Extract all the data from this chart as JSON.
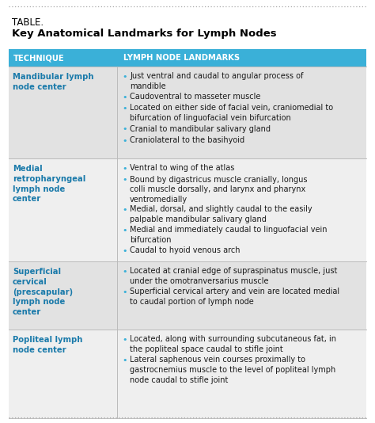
{
  "title_line1": "TABLE.",
  "title_line2": "Key Anatomical Landmarks for Lymph Nodes",
  "header": [
    "TECHNIQUE",
    "LYMPH NODE LANDMARKS"
  ],
  "header_bg": "#3ab0d8",
  "header_text_color": "#ffffff",
  "row_bg_even": "#e2e2e2",
  "row_bg_odd": "#efefef",
  "technique_color": "#1a7aaa",
  "bullet_color": "#3ab0d8",
  "border_color": "#aaaaaa",
  "rows": [
    {
      "technique": "Mandibular lymph\nnode center",
      "landmarks": [
        "Just ventral and caudal to angular process of\nmandible",
        "Caudoventral to masseter muscle",
        "Located on either side of facial vein, craniomedial to\nbifurcation of linguofacial vein bifurcation",
        "Cranial to mandibular salivary gland",
        "Craniolateral to the basihyoid"
      ]
    },
    {
      "technique": "Medial\nretropharyngeal\nlymph node\ncenter",
      "landmarks": [
        "Ventral to wing of the atlas",
        "Bound by digastricus muscle cranially, longus\ncolli muscle dorsally, and larynx and pharynx\nventromedially",
        "Medial, dorsal, and slightly caudal to the easily\npalpable mandibular salivary gland",
        "Medial and immediately caudal to linguofacial vein\nbifurcation",
        "Caudal to hyoid venous arch"
      ]
    },
    {
      "technique": "Superficial\ncervical\n(prescapular)\nlymph node\ncenter",
      "landmarks": [
        "Located at cranial edge of supraspinatus muscle, just\nunder the omotranversarius muscle",
        "Superficial cervical artery and vein are located medial\nto caudal portion of lymph node"
      ]
    },
    {
      "technique": "Popliteal lymph\nnode center",
      "landmarks": [
        "Located, along with surrounding subcutaneous fat, in\nthe popliteal space caudal to stifle joint",
        "Lateral saphenous vein courses proximally to\ngastrocnemius muscle to the level of popliteal lymph\nnode caudal to stifle joint"
      ]
    }
  ]
}
